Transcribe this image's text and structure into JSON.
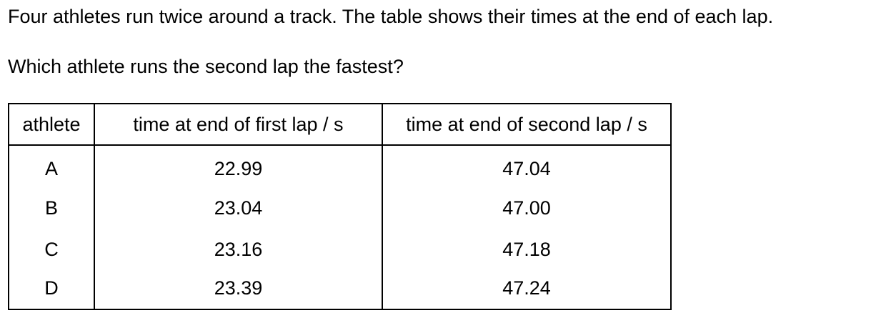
{
  "intro": "Four athletes run twice around a track. The table shows their times at the end of each lap.",
  "question": "Which athlete runs the second lap the fastest?",
  "table": {
    "headers": [
      "athlete",
      "time at end of first lap / s",
      "time at end of second lap / s"
    ],
    "rows": [
      {
        "athlete": "A",
        "lap1": "22.99",
        "lap2": "47.04"
      },
      {
        "athlete": "B",
        "lap1": "23.04",
        "lap2": "47.00"
      },
      {
        "athlete": "C",
        "lap1": "23.16",
        "lap2": "47.18"
      },
      {
        "athlete": "D",
        "lap1": "23.39",
        "lap2": "47.24"
      }
    ]
  }
}
